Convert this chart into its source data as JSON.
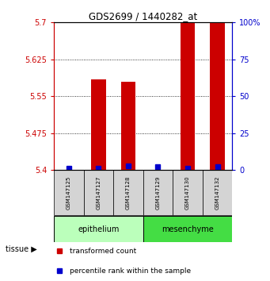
{
  "title": "GDS2699 / 1440282_at",
  "samples": [
    "GSM147125",
    "GSM147127",
    "GSM147128",
    "GSM147129",
    "GSM147130",
    "GSM147132"
  ],
  "transformed_counts": [
    5.4,
    5.585,
    5.58,
    5.4,
    5.7,
    5.7
  ],
  "percentile_ranks": [
    1,
    1,
    3,
    2,
    1,
    2
  ],
  "ylim_left": [
    5.4,
    5.7
  ],
  "ylim_right": [
    0,
    100
  ],
  "yticks_left": [
    5.4,
    5.475,
    5.55,
    5.625,
    5.7
  ],
  "yticks_right": [
    0,
    25,
    50,
    75,
    100
  ],
  "ytick_labels_left": [
    "5.4",
    "5.475",
    "5.55",
    "5.625",
    "5.7"
  ],
  "ytick_labels_right": [
    "0",
    "25",
    "50",
    "75",
    "100%"
  ],
  "tissue_groups": [
    {
      "label": "epithelium",
      "samples": [
        "GSM147125",
        "GSM147127",
        "GSM147128"
      ],
      "color": "#bbffbb",
      "edge_color": "#33bb33"
    },
    {
      "label": "mesenchyme",
      "samples": [
        "GSM147129",
        "GSM147130",
        "GSM147132"
      ],
      "color": "#44dd44",
      "edge_color": "#22aa22"
    }
  ],
  "bar_color": "#cc0000",
  "percentile_color": "#0000cc",
  "bar_width": 0.5,
  "percentile_marker_size": 4,
  "grid_color": "#000000",
  "background_color": "#ffffff",
  "tissue_label": "tissue",
  "legend_items": [
    {
      "label": "transformed count",
      "color": "#cc0000"
    },
    {
      "label": "percentile rank within the sample",
      "color": "#0000cc"
    }
  ]
}
